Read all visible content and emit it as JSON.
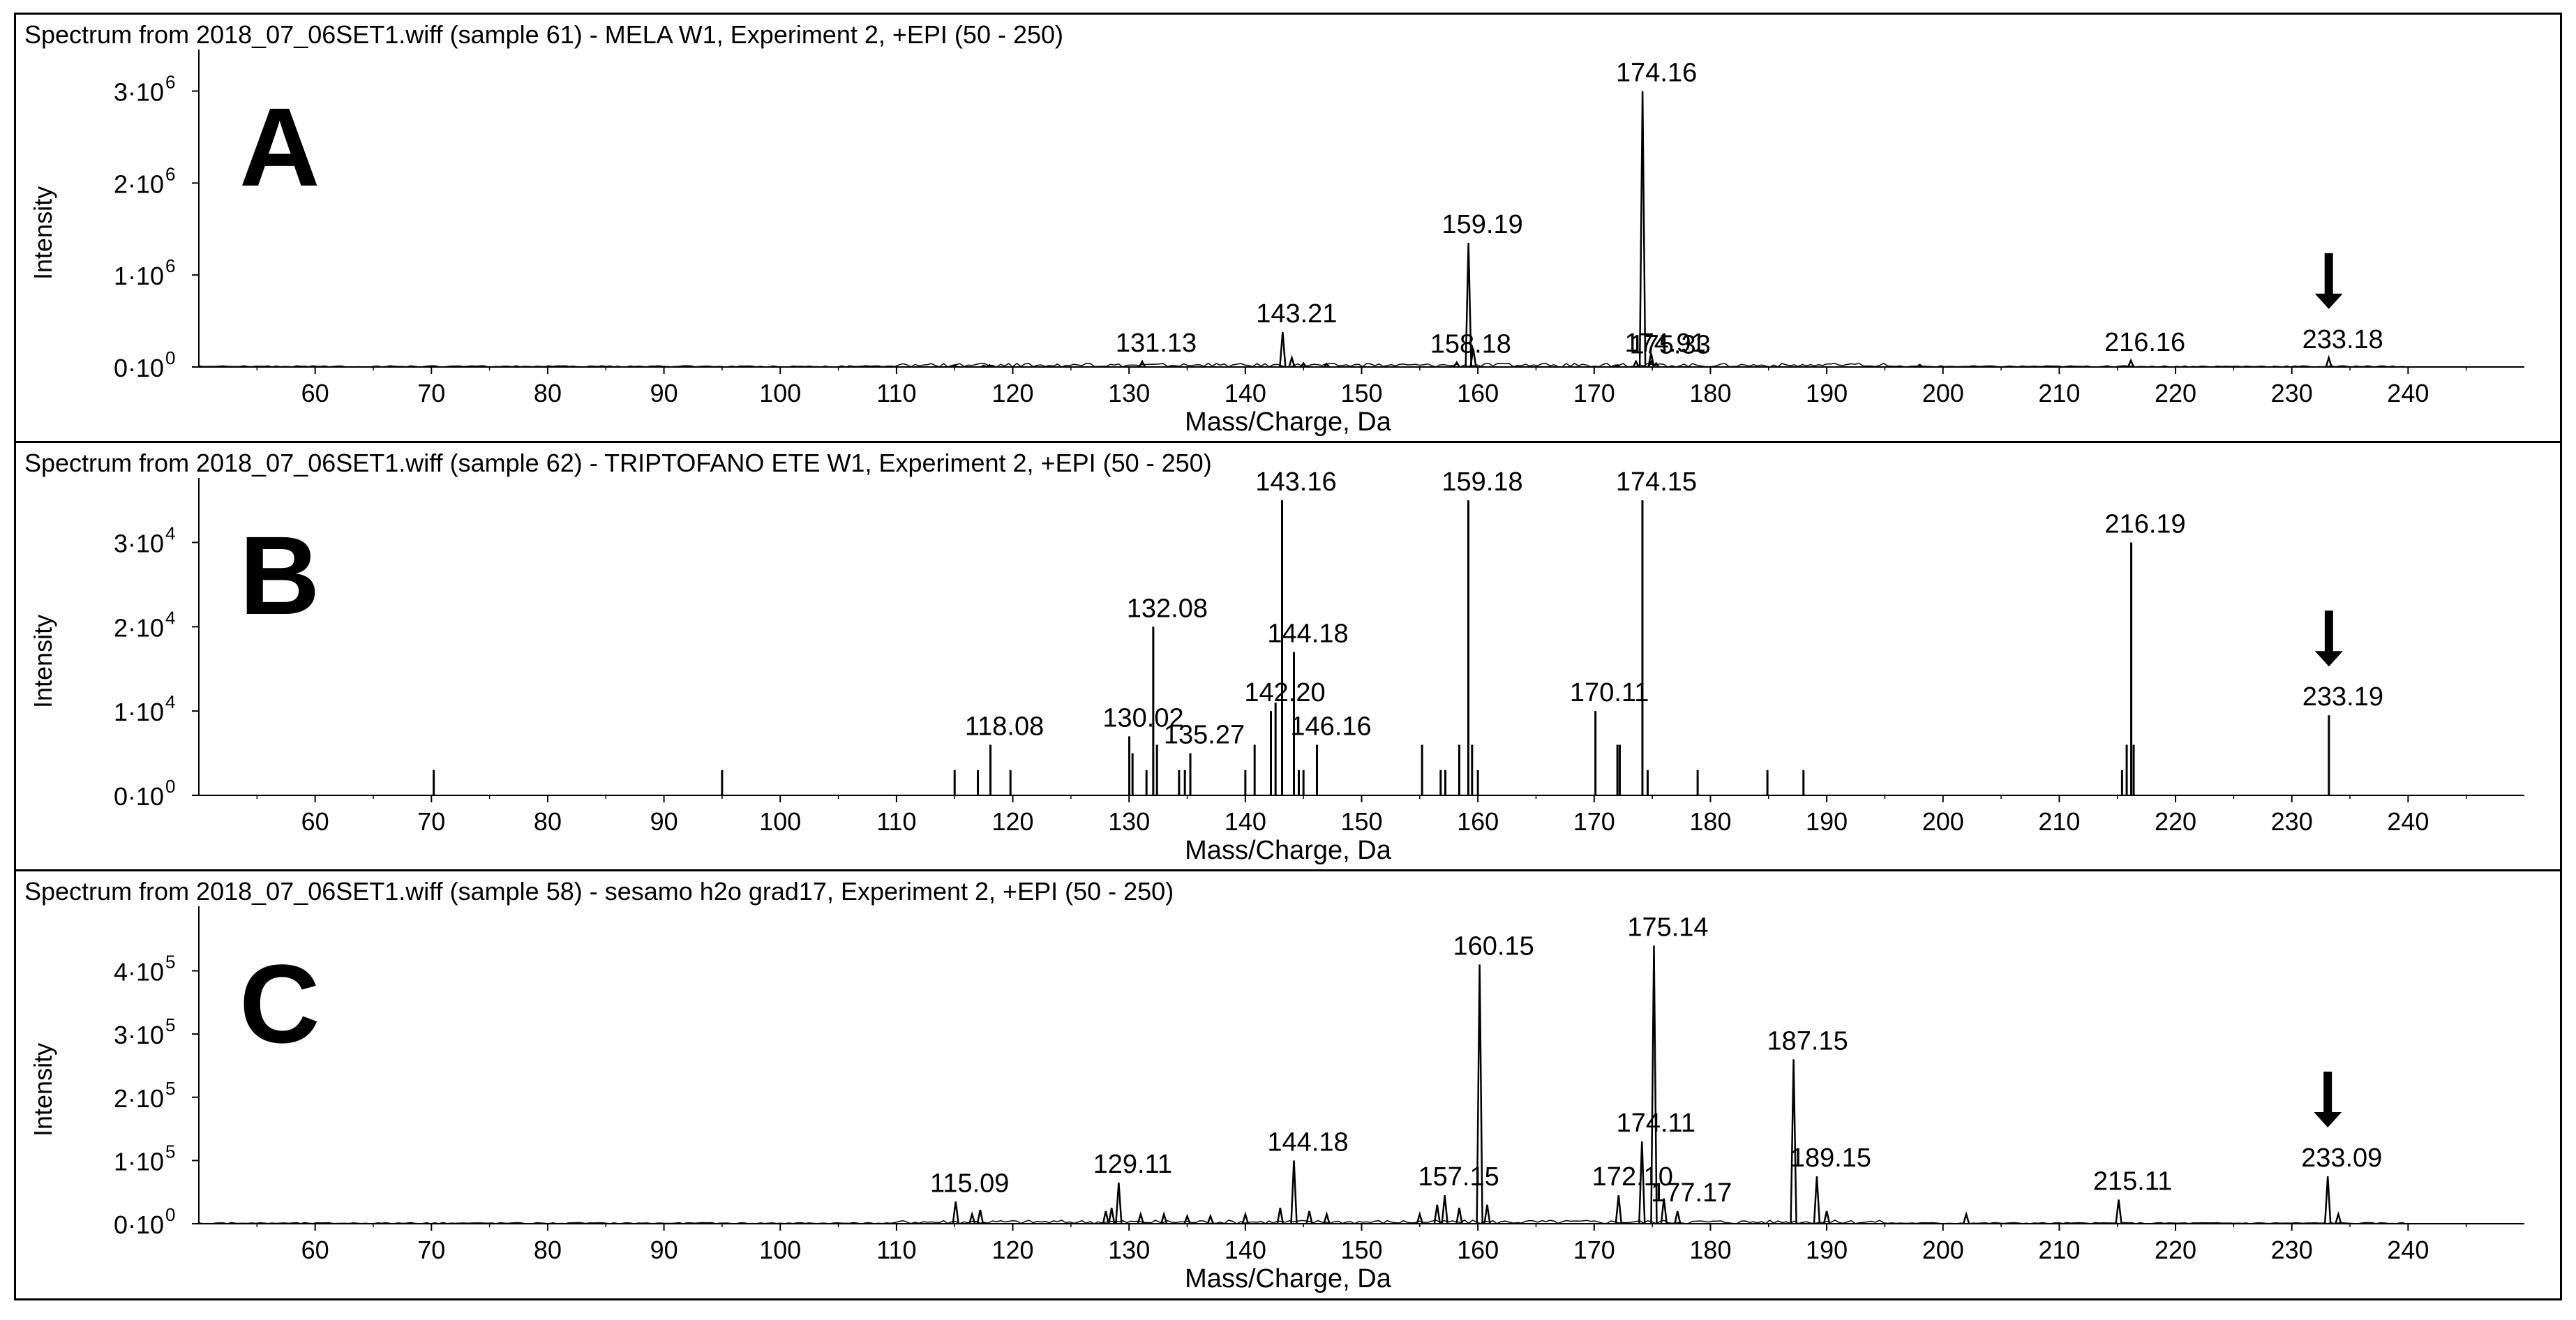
{
  "chart_data": [
    {
      "type": "line",
      "panel_label": "A",
      "title": "Spectrum from 2018_07_06SET1.wiff (sample 61) - MELA W1, Experiment 2, +EPI (50 - 250)",
      "xlabel": "Mass/Charge, Da",
      "ylabel": "Intensity",
      "xlim": [
        50,
        250
      ],
      "ylim": [
        0,
        3300000
      ],
      "x_ticks": [
        60,
        70,
        80,
        90,
        100,
        110,
        120,
        130,
        140,
        150,
        160,
        170,
        180,
        190,
        200,
        210,
        220,
        230,
        240
      ],
      "y_ticks": [
        {
          "value": 0,
          "mantissa": "0·10",
          "exp": "0"
        },
        {
          "value": 1000000,
          "mantissa": "1·10",
          "exp": "6"
        },
        {
          "value": 2000000,
          "mantissa": "2·10",
          "exp": "6"
        },
        {
          "value": 3000000,
          "mantissa": "3·10",
          "exp": "6"
        }
      ],
      "peaks": [
        {
          "x": 115.0,
          "y": 20000
        },
        {
          "x": 117.5,
          "y": 15000
        },
        {
          "x": 118.0,
          "y": 20000
        },
        {
          "x": 131.13,
          "y": 60000,
          "label": "131.13"
        },
        {
          "x": 143.21,
          "y": 380000,
          "label": "143.21"
        },
        {
          "x": 144.0,
          "y": 100000
        },
        {
          "x": 145.0,
          "y": 40000
        },
        {
          "x": 147.0,
          "y": 30000
        },
        {
          "x": 158.18,
          "y": 50000,
          "label": "158.18"
        },
        {
          "x": 159.19,
          "y": 1350000,
          "label": "159.19"
        },
        {
          "x": 159.6,
          "y": 200000
        },
        {
          "x": 172.0,
          "y": 20000
        },
        {
          "x": 173.6,
          "y": 60000
        },
        {
          "x": 174.16,
          "y": 3000000,
          "label": "174.16"
        },
        {
          "x": 174.9,
          "y": 150000
        },
        {
          "x": 175.33,
          "y": 40000,
          "label": "175.33"
        },
        {
          "x": 174.91,
          "y": 60000,
          "label": "174.91"
        },
        {
          "x": 198.0,
          "y": 25000
        },
        {
          "x": 216.16,
          "y": 70000,
          "label": "216.16"
        },
        {
          "x": 233.18,
          "y": 100000,
          "label": "233.18",
          "arrow": true
        }
      ],
      "baseline_noise": true
    },
    {
      "type": "bar",
      "panel_label": "B",
      "title": "Spectrum from 2018_07_06SET1.wiff (sample 62) - TRIPTOFANO ETE W1, Experiment 2, +EPI (50 - 250)",
      "xlabel": "Mass/Charge, Da",
      "ylabel": "Intensity",
      "xlim": [
        50,
        250
      ],
      "ylim": [
        0,
        36000
      ],
      "x_ticks": [
        60,
        70,
        80,
        90,
        100,
        110,
        120,
        130,
        140,
        150,
        160,
        170,
        180,
        190,
        200,
        210,
        220,
        230,
        240
      ],
      "y_ticks": [
        {
          "value": 0,
          "mantissa": "0·10",
          "exp": "0"
        },
        {
          "value": 10000,
          "mantissa": "1·10",
          "exp": "4"
        },
        {
          "value": 20000,
          "mantissa": "2·10",
          "exp": "4"
        },
        {
          "value": 30000,
          "mantissa": "3·10",
          "exp": "4"
        }
      ],
      "peaks": [
        {
          "x": 70.2,
          "y": 3000
        },
        {
          "x": 95.0,
          "y": 3000
        },
        {
          "x": 115.0,
          "y": 3000
        },
        {
          "x": 117.0,
          "y": 3000
        },
        {
          "x": 118.08,
          "y": 6000,
          "label": "118.08"
        },
        {
          "x": 119.8,
          "y": 3000
        },
        {
          "x": 130.02,
          "y": 7000,
          "label": "130.02"
        },
        {
          "x": 130.3,
          "y": 5000
        },
        {
          "x": 131.5,
          "y": 3000
        },
        {
          "x": 132.08,
          "y": 20000,
          "label": "132.08"
        },
        {
          "x": 132.4,
          "y": 6000
        },
        {
          "x": 134.3,
          "y": 3000
        },
        {
          "x": 134.8,
          "y": 3000
        },
        {
          "x": 135.27,
          "y": 5000,
          "label": "135.27"
        },
        {
          "x": 140.0,
          "y": 3000
        },
        {
          "x": 140.8,
          "y": 6000
        },
        {
          "x": 142.2,
          "y": 10000,
          "label": "142.20"
        },
        {
          "x": 142.6,
          "y": 11000
        },
        {
          "x": 143.16,
          "y": 35000,
          "label": "143.16"
        },
        {
          "x": 144.18,
          "y": 17000,
          "label": "144.18"
        },
        {
          "x": 144.6,
          "y": 3000
        },
        {
          "x": 145.0,
          "y": 3000
        },
        {
          "x": 146.16,
          "y": 6000,
          "label": "146.16"
        },
        {
          "x": 155.2,
          "y": 6000
        },
        {
          "x": 156.8,
          "y": 3000
        },
        {
          "x": 157.2,
          "y": 3000
        },
        {
          "x": 158.4,
          "y": 6000
        },
        {
          "x": 159.18,
          "y": 35000,
          "label": "159.18"
        },
        {
          "x": 159.5,
          "y": 6000
        },
        {
          "x": 160.0,
          "y": 3000
        },
        {
          "x": 170.11,
          "y": 10000,
          "label": "170.11"
        },
        {
          "x": 172.0,
          "y": 6000
        },
        {
          "x": 172.2,
          "y": 6000
        },
        {
          "x": 174.15,
          "y": 35000,
          "label": "174.15"
        },
        {
          "x": 174.6,
          "y": 3000
        },
        {
          "x": 178.9,
          "y": 3000
        },
        {
          "x": 184.9,
          "y": 3000
        },
        {
          "x": 188.0,
          "y": 3000
        },
        {
          "x": 215.4,
          "y": 3000
        },
        {
          "x": 215.8,
          "y": 6000
        },
        {
          "x": 216.19,
          "y": 30000,
          "label": "216.19"
        },
        {
          "x": 216.4,
          "y": 6000
        },
        {
          "x": 233.19,
          "y": 9500,
          "label": "233.19",
          "arrow": true
        }
      ],
      "baseline_noise": false
    },
    {
      "type": "line",
      "panel_label": "C",
      "title": "Spectrum from 2018_07_06SET1.wiff (sample 58) - sesamo h2o grad17, Experiment 2, +EPI (50 - 250)",
      "xlabel": "Mass/Charge, Da",
      "ylabel": "Intensity",
      "xlim": [
        50,
        250
      ],
      "ylim": [
        0,
        480000
      ],
      "x_ticks": [
        60,
        70,
        80,
        90,
        100,
        110,
        120,
        130,
        140,
        150,
        160,
        170,
        180,
        190,
        200,
        210,
        220,
        230,
        240
      ],
      "y_ticks": [
        {
          "value": 0,
          "mantissa": "0·10",
          "exp": "0"
        },
        {
          "value": 100000,
          "mantissa": "1·10",
          "exp": "5"
        },
        {
          "value": 200000,
          "mantissa": "2·10",
          "exp": "5"
        },
        {
          "value": 300000,
          "mantissa": "3·10",
          "exp": "5"
        },
        {
          "value": 400000,
          "mantissa": "4·10",
          "exp": "5"
        }
      ],
      "peaks": [
        {
          "x": 115.09,
          "y": 35000,
          "label": "115.09"
        },
        {
          "x": 116.5,
          "y": 15000
        },
        {
          "x": 117.2,
          "y": 22000
        },
        {
          "x": 128.0,
          "y": 20000
        },
        {
          "x": 128.5,
          "y": 25000
        },
        {
          "x": 129.11,
          "y": 65000,
          "label": "129.11"
        },
        {
          "x": 131.0,
          "y": 15000
        },
        {
          "x": 133.0,
          "y": 15000
        },
        {
          "x": 135.0,
          "y": 12000
        },
        {
          "x": 137.0,
          "y": 12000
        },
        {
          "x": 140.0,
          "y": 15000
        },
        {
          "x": 143.0,
          "y": 25000
        },
        {
          "x": 144.18,
          "y": 100000,
          "label": "144.18"
        },
        {
          "x": 145.5,
          "y": 20000
        },
        {
          "x": 147.0,
          "y": 15000
        },
        {
          "x": 155.0,
          "y": 15000
        },
        {
          "x": 156.5,
          "y": 30000
        },
        {
          "x": 157.15,
          "y": 45000,
          "label": "157.15"
        },
        {
          "x": 158.4,
          "y": 25000
        },
        {
          "x": 160.15,
          "y": 410000,
          "label": "160.15"
        },
        {
          "x": 160.8,
          "y": 30000
        },
        {
          "x": 172.1,
          "y": 45000,
          "label": "172.10"
        },
        {
          "x": 174.11,
          "y": 130000,
          "label": "174.11"
        },
        {
          "x": 175.14,
          "y": 440000,
          "label": "175.14"
        },
        {
          "x": 176.0,
          "y": 40000
        },
        {
          "x": 177.17,
          "y": 20000,
          "label": "177.17"
        },
        {
          "x": 187.15,
          "y": 260000,
          "label": "187.15"
        },
        {
          "x": 189.15,
          "y": 75000,
          "label": "189.15"
        },
        {
          "x": 190.0,
          "y": 20000
        },
        {
          "x": 202.0,
          "y": 15000
        },
        {
          "x": 215.11,
          "y": 38000,
          "label": "215.11"
        },
        {
          "x": 233.09,
          "y": 75000,
          "label": "233.09",
          "arrow": true
        },
        {
          "x": 234.0,
          "y": 15000
        }
      ],
      "baseline_noise": true
    }
  ]
}
